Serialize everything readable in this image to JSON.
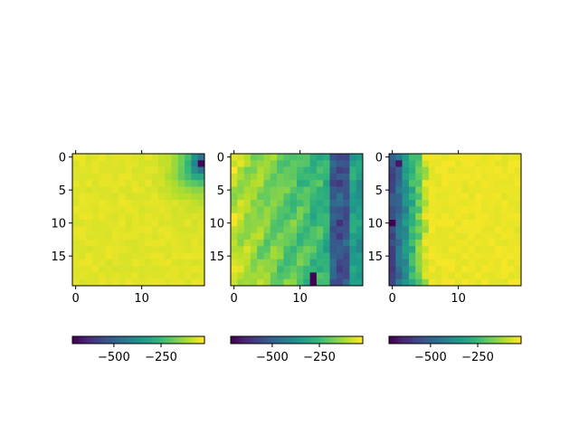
{
  "figure": {
    "background": "#ffffff",
    "colormap": "viridis"
  },
  "chart_data": [
    {
      "type": "heatmap",
      "rows": 20,
      "cols": 20,
      "x_ticks": [
        0,
        10
      ],
      "y_ticks": [
        0,
        5,
        10,
        15
      ],
      "value_range": [
        -720,
        -20
      ],
      "colorbar_ticks": [
        -500,
        -250
      ],
      "colorbar_tick_labels": [
        "−500",
        "−250"
      ],
      "pattern": "Mostly high values (about -60 to -20) over the whole grid; a low-value patch in the top-right corner with a minimum of about -720 near row 1, column 19."
    },
    {
      "type": "heatmap",
      "rows": 20,
      "cols": 20,
      "x_ticks": [
        0,
        10
      ],
      "y_ticks": [
        0,
        5,
        10,
        15
      ],
      "value_range": [
        -720,
        -20
      ],
      "colorbar_ticks": [
        -500,
        -250
      ],
      "colorbar_tick_labels": [
        "−500",
        "−250"
      ],
      "pattern": "High values on the left (about -60) decreasing toward the right; a low-value vertical band around columns 15-17 (about -500 to -600), minimum about -720 near row 19, column 12."
    },
    {
      "type": "heatmap",
      "rows": 20,
      "cols": 20,
      "x_ticks": [
        0,
        10
      ],
      "y_ticks": [
        0,
        5,
        10,
        15
      ],
      "value_range": [
        -720,
        -20
      ],
      "colorbar_ticks": [
        -500,
        -250
      ],
      "colorbar_tick_labels": [
        "−500",
        "−250"
      ],
      "pattern": "Low values in the leftmost columns (about -450 to -650, minimum about -720 near row 10, column 0) rising to high values (about -30) on the right."
    }
  ]
}
